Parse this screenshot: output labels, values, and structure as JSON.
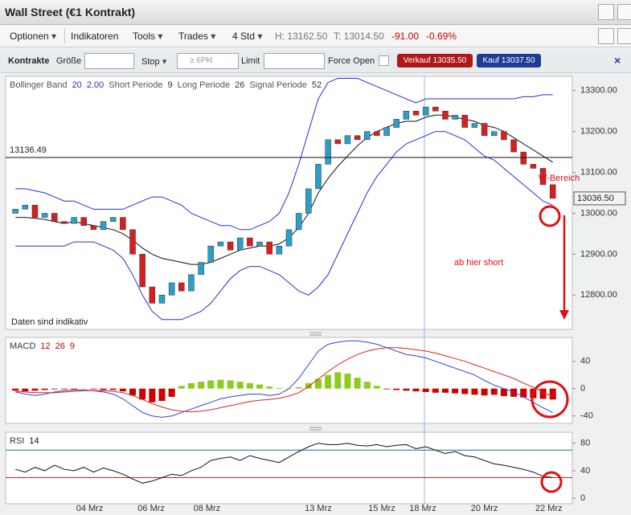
{
  "window": {
    "title": "Wall Street (€1 Kontrakt)"
  },
  "toolbar": {
    "menus": [
      "Optionen",
      "Indikatoren",
      "Tools",
      "Trades",
      "4 Std"
    ],
    "high": "H: 13162.50",
    "low": "T: 13014.50",
    "change": "-91.00",
    "change_pct": "-0.69%"
  },
  "order_bar": {
    "label": "Kontrakte",
    "size_label": "Größe",
    "stop": "Stop",
    "stop_min": "≥ 6Pkt",
    "limit": "Limit",
    "force_open": "Force Open",
    "sell": "Verkauf 13035.50",
    "buy": "Kauf 13037.50"
  },
  "chart_data": [
    {
      "type": "candlestick",
      "label_parts": [
        {
          "text": "Bollinger Band",
          "color": "#555555"
        },
        {
          "text": "20",
          "color": "#2233bb"
        },
        {
          "text": "2.00",
          "color": "#2233bb"
        },
        {
          "text": "Short Periode",
          "color": "#555555"
        },
        {
          "text": "9",
          "color": "#333333"
        },
        {
          "text": "Long Periode",
          "color": "#555555"
        },
        {
          "text": "26",
          "color": "#333333"
        },
        {
          "text": "Signal Periode",
          "color": "#555555"
        },
        {
          "text": "52",
          "color": "#333333"
        }
      ],
      "xlim": [
        -1,
        57
      ],
      "ylim": [
        12716,
        13335
      ],
      "yticks": [
        {
          "value": 13300,
          "label": "13300.00"
        },
        {
          "value": 13200,
          "label": "13200.00"
        },
        {
          "value": 13100,
          "label": "13100.00"
        },
        {
          "value": 13000,
          "label": "13000.00"
        },
        {
          "value": 12900,
          "label": "12900.00"
        },
        {
          "value": 12800,
          "label": "12800.00"
        }
      ],
      "up_color": "#2a9fc9",
      "down_color": "#d62020",
      "open": [
        13000,
        13010,
        13020,
        12990,
        13000,
        12980,
        12975,
        12990,
        12970,
        12960,
        12980,
        12990,
        12960,
        12900,
        12820,
        12780,
        12800,
        12830,
        12810,
        12850,
        12880,
        12920,
        12930,
        12910,
        12940,
        12920,
        12930,
        12900,
        12920,
        12960,
        13000,
        13060,
        13120,
        13180,
        13170,
        13190,
        13180,
        13200,
        13190,
        13210,
        13230,
        13250,
        13240,
        13260,
        13250,
        13230,
        13240,
        13210,
        13220,
        13190,
        13200,
        13180,
        13150,
        13120,
        13110,
        13070
      ],
      "close": [
        13010,
        13020,
        12990,
        13000,
        12980,
        12975,
        12990,
        12970,
        12960,
        12980,
        12990,
        12960,
        12900,
        12820,
        12780,
        12800,
        12830,
        12810,
        12850,
        12880,
        12920,
        12930,
        12910,
        12940,
        12920,
        12930,
        12900,
        12920,
        12960,
        13000,
        13060,
        13120,
        13180,
        13170,
        13190,
        13180,
        13200,
        13190,
        13210,
        13230,
        13250,
        13240,
        13260,
        13250,
        13230,
        13240,
        13210,
        13220,
        13190,
        13200,
        13180,
        13150,
        13120,
        13110,
        13070,
        13036.5
      ],
      "overlays": [
        {
          "color": "#2a2ad8",
          "values": [
            13060,
            13060,
            13055,
            13050,
            13040,
            13030,
            13030,
            13020,
            13010,
            13010,
            13010,
            13010,
            13020,
            13030,
            13040,
            13040,
            13030,
            13020,
            13000,
            12990,
            12980,
            12970,
            12970,
            12960,
            12960,
            12970,
            12980,
            13000,
            13050,
            13120,
            13200,
            13280,
            13320,
            13330,
            13330,
            13330,
            13320,
            13310,
            13300,
            13290,
            13280,
            13270,
            13280,
            13280,
            13280,
            13280,
            13280,
            13280,
            13280,
            13280,
            13280,
            13280,
            13285,
            13285,
            13290,
            13290
          ]
        },
        {
          "color": "#111111",
          "values": [
            12990,
            12990,
            12988,
            12985,
            12980,
            12975,
            12980,
            12975,
            12970,
            12965,
            12960,
            12950,
            12935,
            12915,
            12900,
            12890,
            12885,
            12880,
            12875,
            12875,
            12880,
            12890,
            12900,
            12910,
            12915,
            12920,
            12920,
            12925,
            12940,
            12965,
            13000,
            13050,
            13085,
            13115,
            13140,
            13165,
            13185,
            13200,
            13210,
            13220,
            13225,
            13225,
            13235,
            13240,
            13240,
            13235,
            13230,
            13225,
            13215,
            13210,
            13200,
            13185,
            13170,
            13155,
            13140,
            13125
          ]
        },
        {
          "color": "#2a2ad8",
          "values": [
            12920,
            12920,
            12920,
            12920,
            12920,
            12920,
            12930,
            12930,
            12930,
            12920,
            12910,
            12890,
            12850,
            12800,
            12760,
            12740,
            12740,
            12740,
            12750,
            12760,
            12780,
            12810,
            12840,
            12860,
            12870,
            12870,
            12860,
            12850,
            12830,
            12810,
            12800,
            12820,
            12850,
            12900,
            12950,
            13000,
            13050,
            13090,
            13120,
            13150,
            13170,
            13180,
            13190,
            13200,
            13200,
            13190,
            13180,
            13160,
            13140,
            13130,
            13110,
            13090,
            13070,
            13050,
            13030,
            13020
          ]
        }
      ],
      "reference_line": {
        "value": 13136.49,
        "label": "13136.49"
      },
      "last_price": {
        "value": 13036.5,
        "label": "13036.50"
      },
      "note": "Daten sind indikativ",
      "annotations": [
        "W-Bereich",
        "ab hier short"
      ]
    },
    {
      "type": "macd",
      "label_parts": [
        {
          "text": "MACD",
          "color": "#333333"
        },
        {
          "text": "12",
          "color": "#c00000"
        },
        {
          "text": "26",
          "color": "#c00000"
        },
        {
          "text": "9",
          "color": "#c00000"
        }
      ],
      "xlim": [
        -1,
        57
      ],
      "ylim": [
        -51,
        75
      ],
      "yticks": [
        40,
        0,
        -40
      ],
      "histogram": {
        "positive_color": "#8ccc1c",
        "negative_color": "#d00000",
        "values": [
          -3,
          -4,
          -3,
          -2,
          -1,
          -1,
          -1,
          0,
          -1,
          -2,
          -2,
          -4,
          -10,
          -16,
          -20,
          -18,
          -12,
          4,
          8,
          10,
          12,
          13,
          12,
          10,
          8,
          6,
          3,
          1,
          0,
          2,
          8,
          14,
          20,
          24,
          22,
          16,
          10,
          4,
          -1,
          -2,
          -3,
          -4,
          -5,
          -6,
          -6,
          -7,
          -8,
          -9,
          -10,
          -9,
          -11,
          -12,
          -13,
          -14,
          -15,
          -16
        ]
      },
      "series": [
        {
          "color": "#3344cc",
          "values": [
            -5,
            -8,
            -10,
            -8,
            -5,
            -3,
            -2,
            -2,
            -3,
            -5,
            -8,
            -15,
            -25,
            -35,
            -40,
            -42,
            -40,
            -35,
            -30,
            -25,
            -20,
            -15,
            -12,
            -10,
            -8,
            -8,
            -10,
            -8,
            0,
            15,
            35,
            55,
            65,
            68,
            70,
            70,
            68,
            65,
            60,
            55,
            50,
            48,
            45,
            40,
            35,
            30,
            25,
            20,
            12,
            5,
            0,
            -5,
            -12,
            -20,
            -28,
            -35
          ]
        },
        {
          "color": "#dd2222",
          "values": [
            -4,
            -5,
            -6,
            -6,
            -6,
            -5,
            -4,
            -3,
            -3,
            -3,
            -4,
            -6,
            -10,
            -16,
            -22,
            -27,
            -31,
            -33,
            -34,
            -33,
            -31,
            -28,
            -25,
            -22,
            -19,
            -17,
            -16,
            -14,
            -11,
            -6,
            3,
            14,
            25,
            35,
            43,
            50,
            55,
            58,
            60,
            60,
            59,
            57,
            55,
            52,
            48,
            44,
            40,
            35,
            30,
            25,
            20,
            15,
            8,
            2,
            -5,
            -12
          ]
        }
      ]
    },
    {
      "type": "line",
      "label_parts": [
        {
          "text": "RSI",
          "color": "#333333"
        },
        {
          "text": "14",
          "color": "#111111"
        }
      ],
      "xlim": [
        -1,
        57
      ],
      "ylim": [
        -8,
        96
      ],
      "yticks": [
        80,
        40,
        0
      ],
      "levels": [
        {
          "value": 70,
          "color": "#1a6e8a"
        },
        {
          "value": 30,
          "color": "#d02020"
        }
      ],
      "series": [
        {
          "color": "#111111",
          "values": [
            42,
            38,
            45,
            40,
            48,
            42,
            40,
            45,
            38,
            44,
            40,
            35,
            28,
            22,
            25,
            30,
            35,
            33,
            40,
            45,
            55,
            58,
            60,
            55,
            62,
            58,
            55,
            52,
            60,
            68,
            75,
            80,
            78,
            78,
            80,
            77,
            76,
            78,
            75,
            77,
            78,
            72,
            75,
            70,
            65,
            68,
            62,
            60,
            55,
            50,
            48,
            45,
            42,
            38,
            32,
            30
          ]
        }
      ],
      "xticks": [
        {
          "value": 7.6,
          "label": "04 Mrz"
        },
        {
          "value": 13.9,
          "label": "06 Mrz"
        },
        {
          "value": 19.6,
          "label": "08 Mrz"
        },
        {
          "value": 31,
          "label": "13 Mrz"
        },
        {
          "value": 37.5,
          "label": "15 Mrz"
        },
        {
          "value": 41.7,
          "label": "18 Mrz"
        },
        {
          "value": 48,
          "label": "20 Mrz"
        },
        {
          "value": 54.6,
          "label": "22 Mrz"
        }
      ]
    }
  ]
}
